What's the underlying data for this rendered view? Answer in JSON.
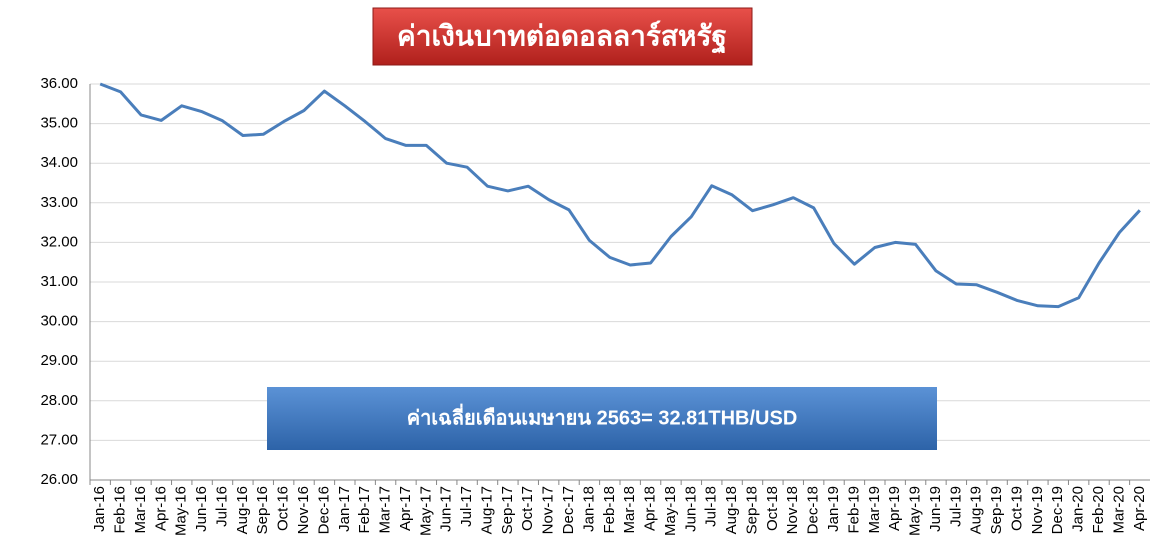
{
  "chart_data": {
    "type": "line",
    "title": "ค่าเงินบาทต่อดอลลาร์สหรัฐ",
    "annotation": "ค่าเฉลี่ยเดือนเมษายน 2563= 32.81THB/USD",
    "categories": [
      "Jan-16",
      "Feb-16",
      "Mar-16",
      "Apr-16",
      "May-16",
      "Jun-16",
      "Jul-16",
      "Aug-16",
      "Sep-16",
      "Oct-16",
      "Nov-16",
      "Dec-16",
      "Jan-17",
      "Feb-17",
      "Mar-17",
      "Apr-17",
      "May-17",
      "Jun-17",
      "Jul-17",
      "Aug-17",
      "Sep-17",
      "Oct-17",
      "Nov-17",
      "Dec-17",
      "Jan-18",
      "Feb-18",
      "Mar-18",
      "Apr-18",
      "May-18",
      "Jun-18",
      "Jul-18",
      "Aug-18",
      "Sep-18",
      "Oct-18",
      "Nov-18",
      "Dec-18",
      "Jan-19",
      "Feb-19",
      "Mar-19",
      "Apr-19",
      "May-19",
      "Jun-19",
      "Jul-19",
      "Aug-19",
      "Sep-19",
      "Oct-19",
      "Nov-19",
      "Dec-19",
      "Jan-20",
      "Feb-20",
      "Mar-20",
      "Apr-20"
    ],
    "values": [
      36.0,
      35.8,
      35.22,
      35.08,
      35.45,
      35.3,
      35.07,
      34.7,
      34.73,
      35.05,
      35.33,
      35.82,
      35.45,
      35.05,
      34.62,
      34.45,
      34.45,
      34.0,
      33.9,
      33.42,
      33.3,
      33.42,
      33.08,
      32.82,
      32.05,
      31.62,
      31.43,
      31.48,
      32.15,
      32.65,
      33.43,
      33.2,
      32.8,
      32.95,
      33.13,
      32.87,
      31.97,
      31.45,
      31.87,
      32.0,
      31.95,
      31.28,
      30.95,
      30.93,
      30.74,
      30.53,
      30.4,
      30.38,
      30.6,
      31.48,
      32.25,
      32.81
    ],
    "color": "#4a7ebb",
    "ylim": [
      26,
      36
    ],
    "yticks": [
      {
        "value": 26,
        "label": "26.00"
      },
      {
        "value": 27,
        "label": "27.00"
      },
      {
        "value": 28,
        "label": "28.00"
      },
      {
        "value": 29,
        "label": "29.00"
      },
      {
        "value": 30,
        "label": "30.00"
      },
      {
        "value": 31,
        "label": "31.00"
      },
      {
        "value": 32,
        "label": "32.00"
      },
      {
        "value": 33,
        "label": "33.00"
      },
      {
        "value": 34,
        "label": "34.00"
      },
      {
        "value": 35,
        "label": "35.00"
      },
      {
        "value": 36,
        "label": "36.00"
      }
    ],
    "grid": true
  }
}
